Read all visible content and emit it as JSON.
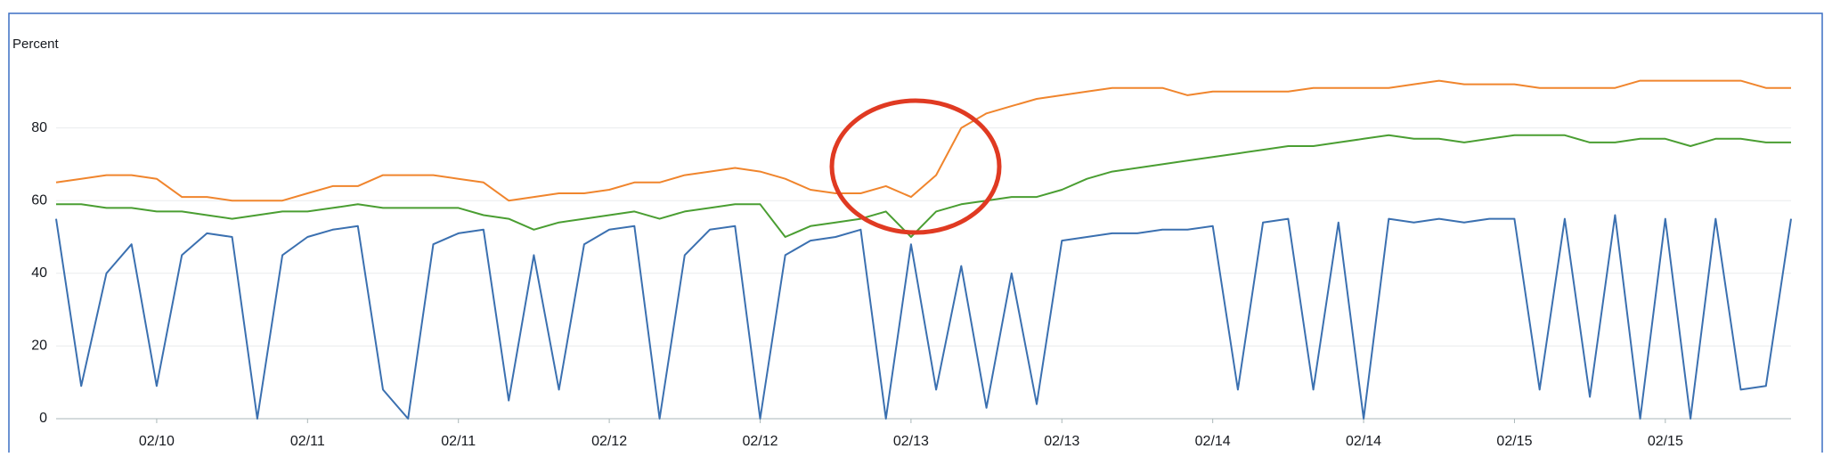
{
  "chart_data": {
    "type": "line",
    "y_label": "Percent",
    "categories": [
      null,
      null,
      null,
      null,
      "02/10",
      null,
      null,
      null,
      null,
      null,
      "02/11",
      null,
      null,
      null,
      null,
      null,
      "02/11",
      null,
      null,
      null,
      null,
      null,
      "02/12",
      null,
      null,
      null,
      null,
      null,
      "02/12",
      null,
      null,
      null,
      null,
      null,
      "02/13",
      null,
      null,
      null,
      null,
      null,
      "02/13",
      null,
      null,
      null,
      null,
      null,
      "02/14",
      null,
      null,
      null,
      null,
      null,
      "02/14",
      null,
      null,
      null,
      null,
      null,
      "02/15",
      null,
      null,
      null,
      null,
      null,
      "02/15",
      null,
      null,
      null,
      null,
      null
    ],
    "series": [
      {
        "color": "#f0852d",
        "values": [
          65,
          66,
          67,
          67,
          66,
          61,
          61,
          60,
          60,
          60,
          62,
          64,
          64,
          67,
          67,
          67,
          66,
          65,
          60,
          61,
          62,
          62,
          63,
          65,
          65,
          67,
          68,
          69,
          68,
          66,
          63,
          62,
          62,
          64,
          61,
          67,
          80,
          84,
          86,
          88,
          89,
          90,
          91,
          91,
          91,
          89,
          90,
          90,
          90,
          90,
          91,
          91,
          91,
          91,
          92,
          93,
          92,
          92,
          92,
          91,
          91,
          91,
          91,
          93,
          93,
          93,
          93,
          93,
          91,
          91
        ]
      },
      {
        "color": "#4a9e32",
        "values": [
          59,
          59,
          58,
          58,
          57,
          57,
          56,
          55,
          56,
          57,
          57,
          58,
          59,
          58,
          58,
          58,
          58,
          56,
          55,
          52,
          54,
          55,
          56,
          57,
          55,
          57,
          58,
          59,
          59,
          50,
          53,
          54,
          55,
          57,
          50,
          57,
          59,
          60,
          61,
          61,
          63,
          66,
          68,
          69,
          70,
          71,
          72,
          73,
          74,
          75,
          75,
          76,
          77,
          78,
          77,
          77,
          76,
          77,
          78,
          78,
          78,
          76,
          76,
          77,
          77,
          75,
          77,
          77,
          76,
          76
        ]
      },
      {
        "color": "#3b70b0",
        "values": [
          55,
          9,
          40,
          48,
          9,
          45,
          51,
          50,
          0,
          45,
          50,
          52,
          53,
          8,
          0,
          48,
          51,
          52,
          5,
          45,
          8,
          48,
          52,
          53,
          0,
          45,
          52,
          53,
          0,
          45,
          49,
          50,
          52,
          0,
          48,
          8,
          42,
          3,
          40,
          4,
          49,
          50,
          51,
          51,
          52,
          52,
          53,
          8,
          54,
          55,
          8,
          54,
          0,
          55,
          54,
          55,
          54,
          55,
          55,
          8,
          55,
          6,
          56,
          0,
          55,
          0,
          55,
          8,
          9,
          55
        ]
      }
    ],
    "ylim": [
      0,
      100
    ],
    "yticks": [
      0,
      20,
      40,
      60,
      80
    ],
    "grid": true
  }
}
